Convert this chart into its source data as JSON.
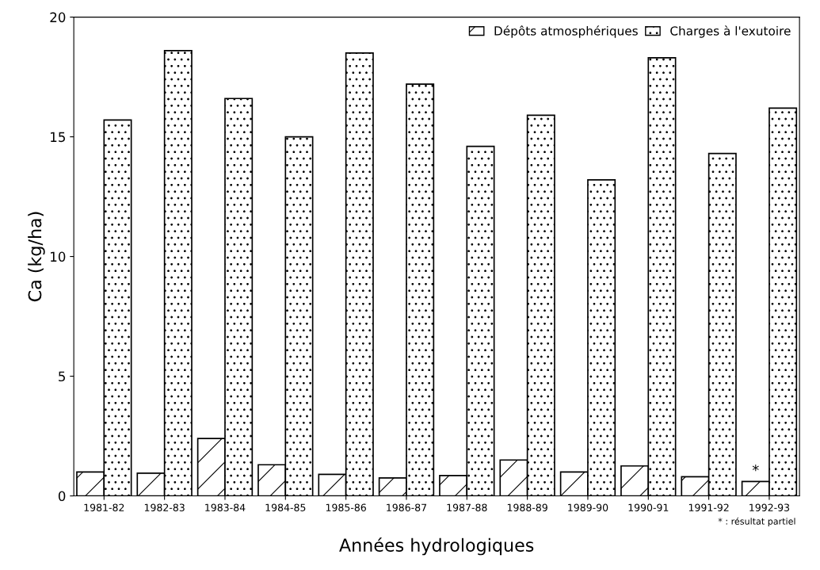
{
  "chart_data": {
    "type": "bar",
    "xlabel": "Années hydrologiques",
    "ylabel": "Ca (kg/ha)",
    "categories": [
      "1981-82",
      "1982-83",
      "1983-84",
      "1984-85",
      "1985-86",
      "1986-87",
      "1987-88",
      "1988-89",
      "1989-90",
      "1990-91",
      "1991-92",
      "1992-93"
    ],
    "series": [
      {
        "name": "Dépôts atmosphériques",
        "color": "#000000",
        "values": [
          1.0,
          0.95,
          2.4,
          1.3,
          0.9,
          0.75,
          0.85,
          1.5,
          1.0,
          1.25,
          0.8,
          0.6
        ]
      },
      {
        "name": "Charges à l'exutoire",
        "color": "#000000",
        "values": [
          15.7,
          18.6,
          16.6,
          15.0,
          18.5,
          17.2,
          14.6,
          15.9,
          13.2,
          18.3,
          14.3,
          16.2
        ]
      }
    ],
    "ylim": [
      0,
      20
    ],
    "yticks": [
      0,
      5,
      10,
      15,
      20
    ],
    "grid": false,
    "legend": "top right",
    "annotations": [
      {
        "text": "*",
        "x": "1992-93",
        "y": 0.6
      },
      "* : résultat partiel"
    ]
  }
}
